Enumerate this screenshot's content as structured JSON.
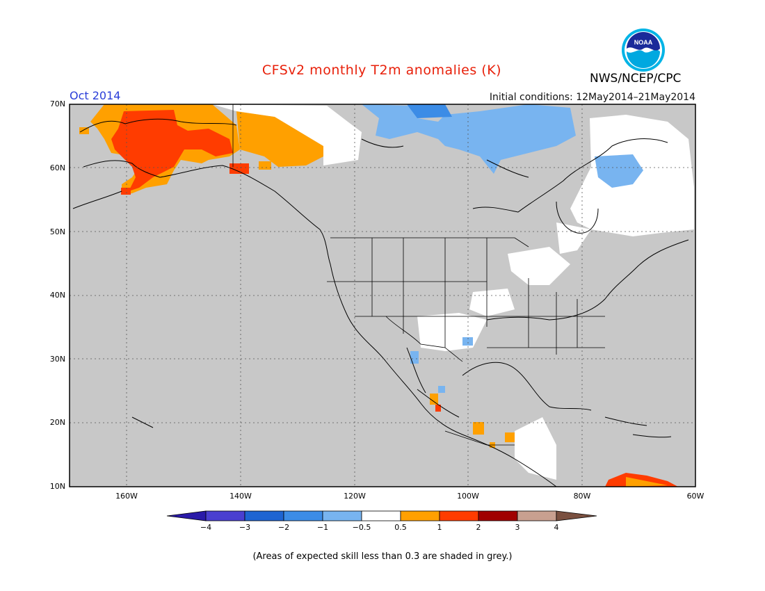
{
  "header": {
    "title": "CFSv2 monthly T2m anomalies (K)",
    "month": "Oct 2014",
    "initial_conditions": "Initial conditions: 12May2014–21May2014",
    "agency": "NWS/NCEP/CPC",
    "logo_text": "NOAA"
  },
  "map": {
    "lat_labels": [
      "70N",
      "60N",
      "50N",
      "40N",
      "30N",
      "20N",
      "10N"
    ],
    "lon_labels": [
      "160W",
      "140W",
      "120W",
      "100W",
      "80W",
      "60W"
    ],
    "background_color": "#c8c8c8",
    "region": "North America"
  },
  "colorbar": {
    "labels": [
      "−4",
      "−3",
      "−2",
      "−1",
      "−0.5",
      "0.5",
      "1",
      "2",
      "3",
      "4"
    ],
    "colors": [
      "#2a1aa8",
      "#4a3fd0",
      "#1e64d2",
      "#3c8ce6",
      "#78b4f0",
      "#ffffff",
      "#ffa000",
      "#ff3c00",
      "#a00000",
      "#c8a090",
      "#7a5040"
    ]
  },
  "footnote": "(Areas of expected skill less than 0.3 are shaded in grey.)"
}
